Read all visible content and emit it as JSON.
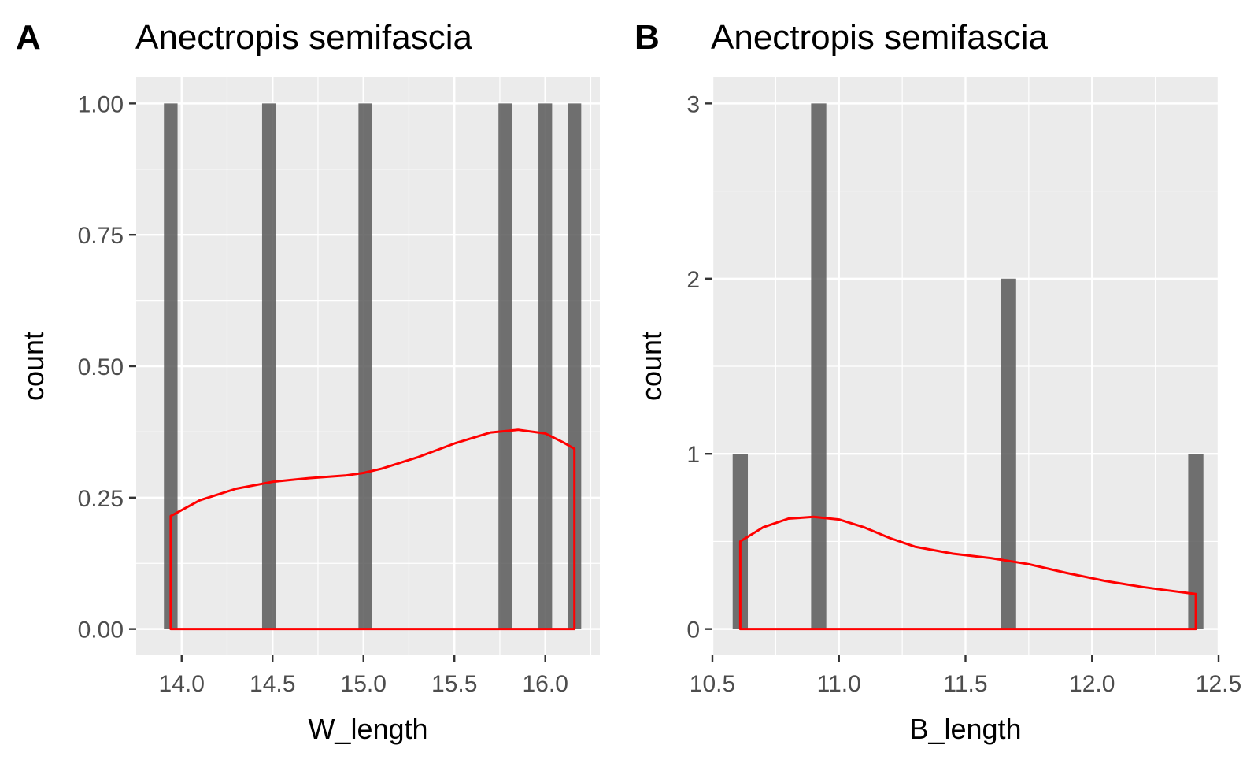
{
  "chart_data": [
    {
      "type": "bar",
      "tag": "A",
      "title": "Anectropis semifascia",
      "xlabel": "W_length",
      "ylabel": "count",
      "xlim": [
        13.75,
        16.3
      ],
      "ylim": [
        -0.05,
        1.05
      ],
      "xticks": [
        14.0,
        14.5,
        15.0,
        15.5,
        16.0
      ],
      "xtick_labels": [
        "14.0",
        "14.5",
        "15.0",
        "15.5",
        "16.0"
      ],
      "yticks": [
        0,
        0.25,
        0.5,
        0.75,
        1.0
      ],
      "ytick_labels": [
        "0.00",
        "0.25",
        "0.50",
        "0.75",
        "1.00"
      ],
      "bin_width": 0.075,
      "bars": [
        {
          "x": 13.94,
          "count": 1
        },
        {
          "x": 14.48,
          "count": 1
        },
        {
          "x": 15.01,
          "count": 1
        },
        {
          "x": 15.78,
          "count": 1
        },
        {
          "x": 16.0,
          "count": 1
        },
        {
          "x": 16.16,
          "count": 1
        }
      ],
      "density": {
        "x": [
          13.94,
          14.1,
          14.3,
          14.5,
          14.7,
          14.9,
          15.0,
          15.1,
          15.3,
          15.5,
          15.7,
          15.85,
          16.0,
          16.1,
          16.16
        ],
        "y": [
          0.215,
          0.245,
          0.267,
          0.28,
          0.287,
          0.292,
          0.297,
          0.305,
          0.327,
          0.353,
          0.374,
          0.379,
          0.372,
          0.355,
          0.343
        ]
      }
    },
    {
      "type": "bar",
      "tag": "B",
      "title": "Anectropis semifascia",
      "xlabel": "B_length",
      "ylabel": "count",
      "xlim": [
        10.5,
        12.5
      ],
      "ylim": [
        -0.15,
        3.15
      ],
      "xticks": [
        10.5,
        11.0,
        11.5,
        12.0,
        12.5
      ],
      "xtick_labels": [
        "10.5",
        "11.0",
        "11.5",
        "12.0",
        "12.5"
      ],
      "yticks": [
        0,
        1,
        2,
        3
      ],
      "ytick_labels": [
        "0",
        "1",
        "2",
        "3"
      ],
      "bin_width": 0.06,
      "bars": [
        {
          "x": 10.61,
          "count": 1
        },
        {
          "x": 10.92,
          "count": 3
        },
        {
          "x": 11.67,
          "count": 2
        },
        {
          "x": 12.41,
          "count": 1
        }
      ],
      "density": {
        "x": [
          10.61,
          10.7,
          10.8,
          10.9,
          11.0,
          11.1,
          11.2,
          11.3,
          11.45,
          11.6,
          11.75,
          11.9,
          12.05,
          12.2,
          12.3,
          12.41
        ],
        "y": [
          0.5,
          0.58,
          0.63,
          0.64,
          0.625,
          0.58,
          0.52,
          0.47,
          0.43,
          0.405,
          0.37,
          0.32,
          0.275,
          0.24,
          0.22,
          0.2
        ]
      }
    }
  ],
  "colors": {
    "panel_bg": "#ebebeb",
    "grid_major": "#ffffff",
    "bar": "#595959",
    "density": "#ff0000",
    "tick_text": "#4d4d4d",
    "tick_mark": "#333333"
  }
}
